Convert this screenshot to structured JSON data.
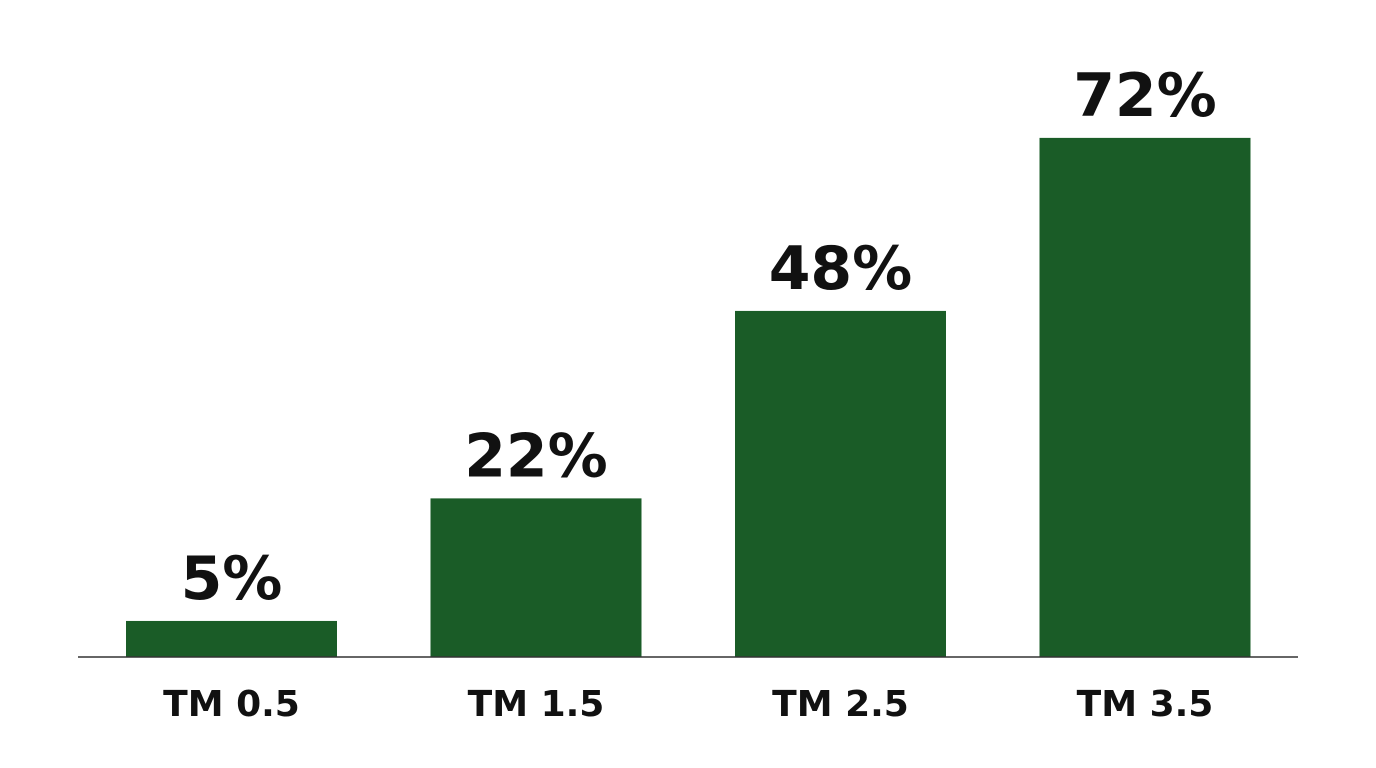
{
  "chart_data": {
    "type": "bar",
    "categories": [
      "TM 0.5",
      "TM 1.5",
      "TM 2.5",
      "TM 3.5"
    ],
    "values": [
      5,
      22,
      48,
      72
    ],
    "value_labels": [
      "5%",
      "22%",
      "48%",
      "72%"
    ],
    "color": "#1a5c27"
  }
}
